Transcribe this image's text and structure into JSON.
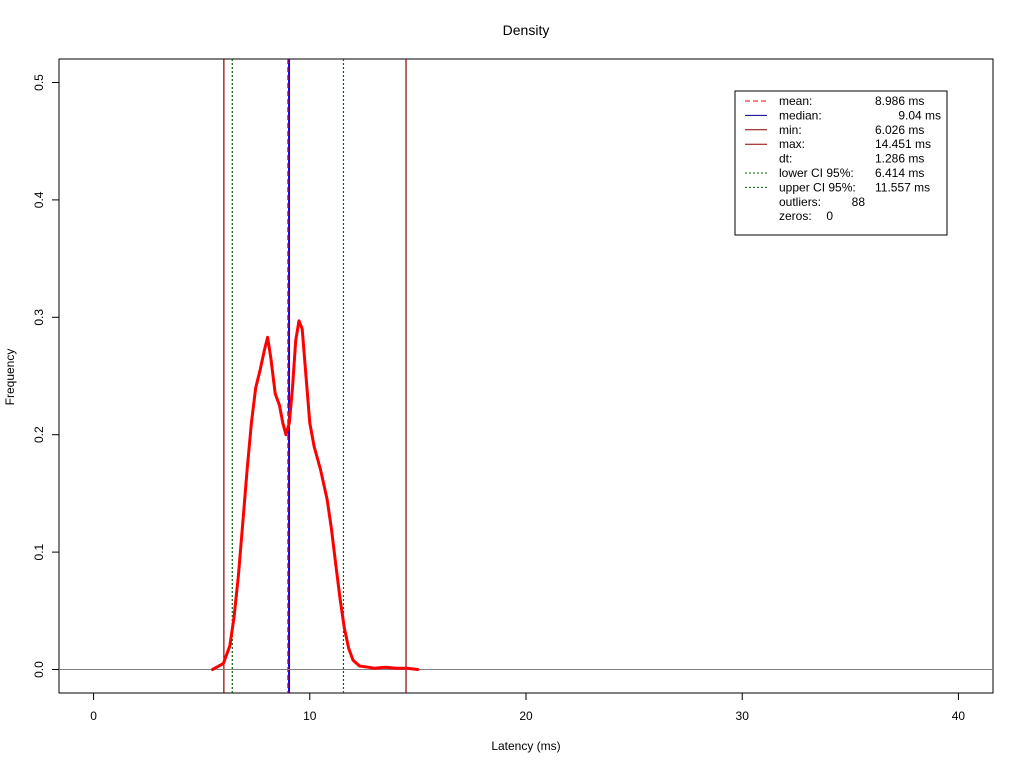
{
  "chart_data": {
    "type": "line",
    "title": "Density",
    "xlabel": "Latency (ms)",
    "ylabel": "Frequency",
    "xlim": [
      -1.6,
      41.6
    ],
    "ylim": [
      -0.02,
      0.52
    ],
    "xticks": [
      "0",
      "10",
      "20",
      "30",
      "40"
    ],
    "yticks": [
      "0.0",
      "0.1",
      "0.2",
      "0.3",
      "0.4",
      "0.5"
    ],
    "series": [
      {
        "color": "#ff0000",
        "x": [
          5.5,
          6.0,
          6.3,
          6.5,
          6.7,
          6.9,
          7.1,
          7.3,
          7.5,
          7.7,
          7.9,
          8.05,
          8.2,
          8.4,
          8.6,
          8.75,
          8.9,
          9.05,
          9.2,
          9.35,
          9.5,
          9.65,
          9.8,
          10.0,
          10.2,
          10.5,
          10.8,
          11.0,
          11.2,
          11.4,
          11.6,
          11.8,
          12.0,
          12.3,
          12.7,
          13.0,
          13.5,
          14.0,
          14.5,
          15.0
        ],
        "y": [
          0.0,
          0.005,
          0.02,
          0.045,
          0.08,
          0.125,
          0.17,
          0.21,
          0.24,
          0.255,
          0.272,
          0.283,
          0.265,
          0.235,
          0.225,
          0.21,
          0.2,
          0.21,
          0.24,
          0.28,
          0.297,
          0.29,
          0.255,
          0.21,
          0.19,
          0.17,
          0.145,
          0.12,
          0.09,
          0.06,
          0.035,
          0.018,
          0.008,
          0.003,
          0.002,
          0.001,
          0.002,
          0.001,
          0.001,
          0.0
        ]
      }
    ],
    "vlines": [
      {
        "x": 6.026,
        "color": "#8b0000",
        "style": "solid"
      },
      {
        "x": 14.451,
        "color": "#8b0000",
        "style": "solid"
      },
      {
        "x": 6.414,
        "color": "#006400",
        "style": "dotted"
      },
      {
        "x": 11.557,
        "color": "#006400",
        "style": "dotted"
      },
      {
        "x": 9.04,
        "color": "#0000ff",
        "style": "solid"
      },
      {
        "x": 8.986,
        "color": "#ff0000",
        "style": "dashed"
      }
    ],
    "hline": {
      "y": 0.0,
      "color": "#808080"
    },
    "grid": false,
    "legend_position": "top-right",
    "legend": [
      {
        "label": "mean:",
        "value": "8.986 ms",
        "color": "#ff0000",
        "style": "dashed"
      },
      {
        "label": "median:",
        "value": "9.04 ms",
        "color": "#00008b",
        "style": "solid"
      },
      {
        "label": "min:",
        "value": "6.026 ms",
        "color": "#8b0000",
        "style": "solid"
      },
      {
        "label": "max:",
        "value": "14.451 ms",
        "color": "#8b0000",
        "style": "solid"
      },
      {
        "label": "dt:",
        "value": "1.286 ms",
        "color": "",
        "style": "none"
      },
      {
        "label": "lower CI 95%:",
        "value": "6.414 ms",
        "color": "#006400",
        "style": "dotted"
      },
      {
        "label": "upper CI 95%:",
        "value": "11.557 ms",
        "color": "#006400",
        "style": "dotted"
      },
      {
        "label": "outliers:",
        "value": "88",
        "color": "",
        "style": "none"
      },
      {
        "label": "zeros:",
        "value": "0",
        "color": "",
        "style": "none"
      }
    ]
  }
}
